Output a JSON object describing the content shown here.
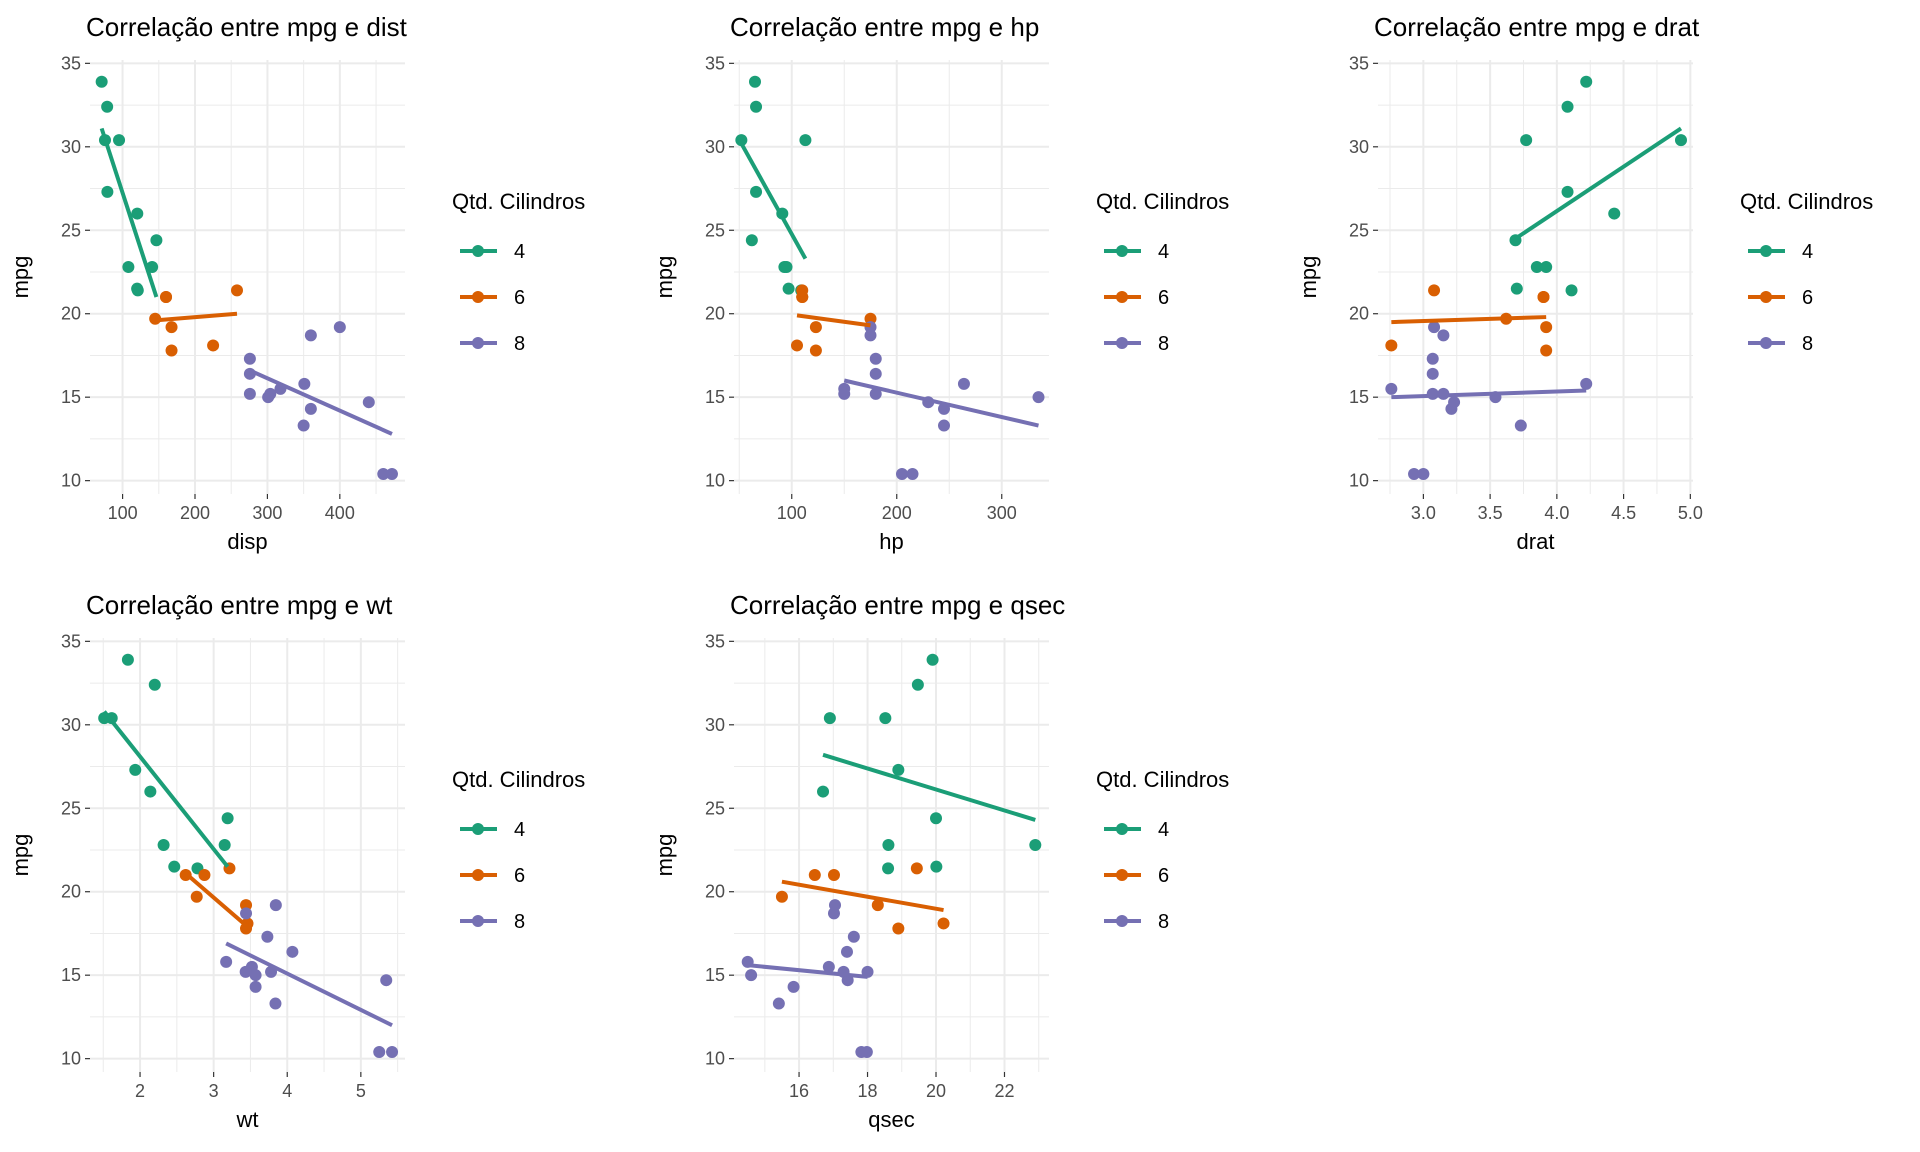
{
  "colors": {
    "cyl4": "#1B9E77",
    "cyl6": "#D95F02",
    "cyl8": "#7570B3",
    "grid": "#EBEBEB",
    "text": "#000000",
    "tick_text": "#4D4D4D"
  },
  "legend": {
    "title": "Qtd. Cilindros",
    "entries": [
      {
        "label": "4",
        "color": "#1B9E77"
      },
      {
        "label": "6",
        "color": "#D95F02"
      },
      {
        "label": "8",
        "color": "#7570B3"
      }
    ]
  },
  "chart_data": [
    {
      "type": "scatter",
      "title": "Correlação entre mpg e dist",
      "xlabel": "disp",
      "ylabel": "mpg",
      "xlim": [
        55,
        490
      ],
      "ylim": [
        9.2,
        35.2
      ],
      "xticks": [
        100,
        200,
        300,
        400
      ],
      "xticklabels": [
        "100",
        "200",
        "300",
        "400"
      ],
      "yticks": [
        10,
        15,
        20,
        25,
        30,
        35
      ],
      "yticklabels": [
        "10",
        "15",
        "20",
        "25",
        "30",
        "35"
      ],
      "grid": true,
      "legend_position": "right",
      "series": [
        {
          "name": "4",
          "color": "#1B9E77",
          "points": [
            [
              108,
              22.8
            ],
            [
              146.7,
              24.4
            ],
            [
              140.8,
              22.8
            ],
            [
              78.7,
              32.4
            ],
            [
              75.7,
              30.4
            ],
            [
              71.1,
              33.9
            ],
            [
              120.1,
              21.5
            ],
            [
              79,
              27.3
            ],
            [
              120.3,
              26
            ],
            [
              95.1,
              30.4
            ],
            [
              121,
              21.4
            ]
          ],
          "fit": [
            [
              71.1,
              31.1
            ],
            [
              146.7,
              21.0
            ]
          ]
        },
        {
          "name": "6",
          "color": "#D95F02",
          "points": [
            [
              160,
              21
            ],
            [
              160,
              21
            ],
            [
              258,
              21.4
            ],
            [
              225,
              18.1
            ],
            [
              167.6,
              19.2
            ],
            [
              167.6,
              17.8
            ],
            [
              145,
              19.7
            ]
          ],
          "fit": [
            [
              145,
              19.6
            ],
            [
              258,
              20.0
            ]
          ]
        },
        {
          "name": "8",
          "color": "#7570B3",
          "points": [
            [
              360,
              18.7
            ],
            [
              360,
              14.3
            ],
            [
              275.8,
              16.4
            ],
            [
              275.8,
              17.3
            ],
            [
              275.8,
              15.2
            ],
            [
              472,
              10.4
            ],
            [
              460,
              10.4
            ],
            [
              440,
              14.7
            ],
            [
              318,
              15.5
            ],
            [
              304,
              15.2
            ],
            [
              350,
              13.3
            ],
            [
              400,
              19.2
            ],
            [
              351,
              15.8
            ],
            [
              301,
              15.0
            ]
          ],
          "fit": [
            [
              275.8,
              16.6
            ],
            [
              472,
              12.8
            ]
          ]
        }
      ]
    },
    {
      "type": "scatter",
      "title": "Correlação entre mpg e hp",
      "xlabel": "hp",
      "ylabel": "mpg",
      "xlim": [
        45,
        345
      ],
      "ylim": [
        9.2,
        35.2
      ],
      "xticks": [
        100,
        200,
        300
      ],
      "xticklabels": [
        "100",
        "200",
        "300"
      ],
      "yticks": [
        10,
        15,
        20,
        25,
        30,
        35
      ],
      "yticklabels": [
        "10",
        "15",
        "20",
        "25",
        "30",
        "35"
      ],
      "grid": true,
      "legend_position": "right",
      "series": [
        {
          "name": "4",
          "color": "#1B9E77",
          "points": [
            [
              93,
              22.8
            ],
            [
              62,
              24.4
            ],
            [
              95,
              22.8
            ],
            [
              66,
              32.4
            ],
            [
              52,
              30.4
            ],
            [
              65,
              33.9
            ],
            [
              97,
              21.5
            ],
            [
              66,
              27.3
            ],
            [
              91,
              26
            ],
            [
              113,
              30.4
            ],
            [
              109,
              21.4
            ]
          ],
          "fit": [
            [
              52,
              30.2
            ],
            [
              113,
              23.3
            ]
          ]
        },
        {
          "name": "6",
          "color": "#D95F02",
          "points": [
            [
              110,
              21
            ],
            [
              110,
              21
            ],
            [
              110,
              21.4
            ],
            [
              105,
              18.1
            ],
            [
              123,
              19.2
            ],
            [
              123,
              17.8
            ],
            [
              175,
              19.7
            ]
          ],
          "fit": [
            [
              105,
              19.9
            ],
            [
              175,
              19.3
            ]
          ]
        },
        {
          "name": "8",
          "color": "#7570B3",
          "points": [
            [
              175,
              18.7
            ],
            [
              245,
              14.3
            ],
            [
              180,
              16.4
            ],
            [
              180,
              17.3
            ],
            [
              180,
              15.2
            ],
            [
              205,
              10.4
            ],
            [
              215,
              10.4
            ],
            [
              230,
              14.7
            ],
            [
              150,
              15.5
            ],
            [
              150,
              15.2
            ],
            [
              245,
              13.3
            ],
            [
              175,
              19.2
            ],
            [
              264,
              15.8
            ],
            [
              335,
              15.0
            ]
          ],
          "fit": [
            [
              150,
              16.0
            ],
            [
              335,
              13.3
            ]
          ]
        }
      ]
    },
    {
      "type": "scatter",
      "title": "Correlação entre mpg e drat",
      "xlabel": "drat",
      "ylabel": "mpg",
      "xlim": [
        2.66,
        5.02
      ],
      "ylim": [
        9.2,
        35.2
      ],
      "xticks": [
        3.0,
        3.5,
        4.0,
        4.5,
        5.0
      ],
      "xticklabels": [
        "3.0",
        "3.5",
        "4.0",
        "4.5",
        "5.0"
      ],
      "yticks": [
        10,
        15,
        20,
        25,
        30,
        35
      ],
      "yticklabels": [
        "10",
        "15",
        "20",
        "25",
        "30",
        "35"
      ],
      "grid": true,
      "legend_position": "right",
      "series": [
        {
          "name": "4",
          "color": "#1B9E77",
          "points": [
            [
              3.85,
              22.8
            ],
            [
              3.69,
              24.4
            ],
            [
              3.92,
              22.8
            ],
            [
              4.08,
              32.4
            ],
            [
              4.93,
              30.4
            ],
            [
              4.22,
              33.9
            ],
            [
              3.7,
              21.5
            ],
            [
              4.08,
              27.3
            ],
            [
              4.43,
              26
            ],
            [
              3.77,
              30.4
            ],
            [
              4.11,
              21.4
            ]
          ],
          "fit": [
            [
              3.69,
              24.5
            ],
            [
              4.93,
              31.1
            ]
          ]
        },
        {
          "name": "6",
          "color": "#D95F02",
          "points": [
            [
              3.9,
              21
            ],
            [
              3.9,
              21
            ],
            [
              3.08,
              21.4
            ],
            [
              2.76,
              18.1
            ],
            [
              3.92,
              19.2
            ],
            [
              3.92,
              17.8
            ],
            [
              3.62,
              19.7
            ]
          ],
          "fit": [
            [
              2.76,
              19.5
            ],
            [
              3.92,
              19.8
            ]
          ]
        },
        {
          "name": "8",
          "color": "#7570B3",
          "points": [
            [
              3.15,
              18.7
            ],
            [
              3.21,
              14.3
            ],
            [
              3.07,
              16.4
            ],
            [
              3.07,
              17.3
            ],
            [
              3.07,
              15.2
            ],
            [
              2.93,
              10.4
            ],
            [
              3.0,
              10.4
            ],
            [
              3.23,
              14.7
            ],
            [
              2.76,
              15.5
            ],
            [
              3.15,
              15.2
            ],
            [
              3.73,
              13.3
            ],
            [
              3.08,
              19.2
            ],
            [
              4.22,
              15.8
            ],
            [
              3.54,
              15.0
            ]
          ],
          "fit": [
            [
              2.76,
              15.0
            ],
            [
              4.22,
              15.4
            ]
          ]
        }
      ]
    },
    {
      "type": "scatter",
      "title": "Correlação entre mpg e wt",
      "xlabel": "wt",
      "ylabel": "mpg",
      "xlim": [
        1.32,
        5.6
      ],
      "ylim": [
        9.2,
        35.2
      ],
      "xticks": [
        2,
        3,
        4,
        5
      ],
      "xticklabels": [
        "2",
        "3",
        "4",
        "5"
      ],
      "yticks": [
        10,
        15,
        20,
        25,
        30,
        35
      ],
      "yticklabels": [
        "10",
        "15",
        "20",
        "25",
        "30",
        "35"
      ],
      "grid": true,
      "legend_position": "right",
      "series": [
        {
          "name": "4",
          "color": "#1B9E77",
          "points": [
            [
              2.32,
              22.8
            ],
            [
              3.19,
              24.4
            ],
            [
              3.15,
              22.8
            ],
            [
              2.2,
              32.4
            ],
            [
              1.615,
              30.4
            ],
            [
              1.835,
              33.9
            ],
            [
              2.465,
              21.5
            ],
            [
              1.935,
              27.3
            ],
            [
              2.14,
              26
            ],
            [
              1.513,
              30.4
            ],
            [
              2.78,
              21.4
            ]
          ],
          "fit": [
            [
              1.513,
              30.8
            ],
            [
              3.19,
              21.5
            ]
          ]
        },
        {
          "name": "6",
          "color": "#D95F02",
          "points": [
            [
              2.62,
              21
            ],
            [
              2.875,
              21
            ],
            [
              3.215,
              21.4
            ],
            [
              3.46,
              18.1
            ],
            [
              3.44,
              19.2
            ],
            [
              3.44,
              17.8
            ],
            [
              2.77,
              19.7
            ]
          ],
          "fit": [
            [
              2.62,
              21.1
            ],
            [
              3.46,
              17.9
            ]
          ]
        },
        {
          "name": "8",
          "color": "#7570B3",
          "points": [
            [
              3.44,
              18.7
            ],
            [
              3.57,
              14.3
            ],
            [
              4.07,
              16.4
            ],
            [
              3.73,
              17.3
            ],
            [
              3.78,
              15.2
            ],
            [
              5.25,
              10.4
            ],
            [
              5.424,
              10.4
            ],
            [
              5.345,
              14.7
            ],
            [
              3.52,
              15.5
            ],
            [
              3.435,
              15.2
            ],
            [
              3.84,
              13.3
            ],
            [
              3.845,
              19.2
            ],
            [
              3.17,
              15.8
            ],
            [
              3.57,
              15.0
            ]
          ],
          "fit": [
            [
              3.17,
              16.9
            ],
            [
              5.424,
              12.0
            ]
          ]
        }
      ]
    },
    {
      "type": "scatter",
      "title": "Correlação entre mpg e qsec",
      "xlabel": "qsec",
      "ylabel": "mpg",
      "xlim": [
        14.1,
        23.3
      ],
      "ylim": [
        9.2,
        35.2
      ],
      "xticks": [
        16,
        18,
        20,
        22
      ],
      "xticklabels": [
        "16",
        "18",
        "20",
        "22"
      ],
      "yticks": [
        10,
        15,
        20,
        25,
        30,
        35
      ],
      "yticklabels": [
        "10",
        "15",
        "20",
        "25",
        "30",
        "35"
      ],
      "grid": true,
      "legend_position": "right",
      "series": [
        {
          "name": "4",
          "color": "#1B9E77",
          "points": [
            [
              18.61,
              22.8
            ],
            [
              20,
              24.4
            ],
            [
              22.9,
              22.8
            ],
            [
              19.47,
              32.4
            ],
            [
              18.52,
              30.4
            ],
            [
              19.9,
              33.9
            ],
            [
              20.01,
              21.5
            ],
            [
              18.9,
              27.3
            ],
            [
              16.7,
              26
            ],
            [
              16.9,
              30.4
            ],
            [
              18.6,
              21.4
            ]
          ],
          "fit": [
            [
              16.7,
              28.2
            ],
            [
              22.9,
              24.3
            ]
          ]
        },
        {
          "name": "6",
          "color": "#D95F02",
          "points": [
            [
              16.46,
              21
            ],
            [
              17.02,
              21
            ],
            [
              19.44,
              21.4
            ],
            [
              20.22,
              18.1
            ],
            [
              18.3,
              19.2
            ],
            [
              18.9,
              17.8
            ],
            [
              15.5,
              19.7
            ]
          ],
          "fit": [
            [
              15.5,
              20.6
            ],
            [
              20.22,
              18.9
            ]
          ]
        },
        {
          "name": "8",
          "color": "#7570B3",
          "points": [
            [
              17.02,
              18.7
            ],
            [
              15.84,
              14.3
            ],
            [
              17.4,
              16.4
            ],
            [
              17.6,
              17.3
            ],
            [
              18.0,
              15.2
            ],
            [
              17.98,
              10.4
            ],
            [
              17.82,
              10.4
            ],
            [
              17.42,
              14.7
            ],
            [
              16.87,
              15.5
            ],
            [
              17.3,
              15.2
            ],
            [
              15.41,
              13.3
            ],
            [
              17.05,
              19.2
            ],
            [
              14.5,
              15.8
            ],
            [
              14.6,
              15.0
            ]
          ],
          "fit": [
            [
              14.5,
              15.6
            ],
            [
              18.0,
              14.9
            ]
          ]
        }
      ]
    }
  ]
}
